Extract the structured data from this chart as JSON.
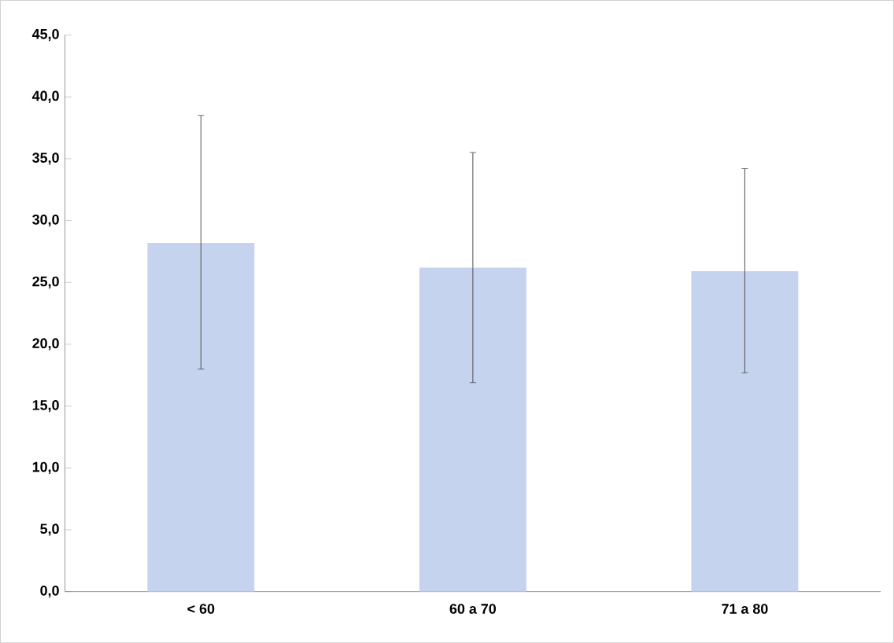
{
  "chart_data": {
    "type": "bar",
    "categories": [
      "< 60",
      "60 a 70",
      "71 a 80"
    ],
    "values": [
      28.2,
      26.2,
      25.9
    ],
    "color": "#c5d3ee",
    "errors": [
      [
        18.0,
        38.5
      ],
      [
        16.9,
        35.5
      ],
      [
        17.7,
        34.2
      ]
    ],
    "ylim": [
      0,
      45
    ],
    "yticks": [
      {
        "value": 0,
        "label": "0,0"
      },
      {
        "value": 5,
        "label": "5,0"
      },
      {
        "value": 10,
        "label": "10,0"
      },
      {
        "value": 15,
        "label": "15,0"
      },
      {
        "value": 20,
        "label": "20,0"
      },
      {
        "value": 25,
        "label": "25,0"
      },
      {
        "value": 30,
        "label": "30,0"
      },
      {
        "value": 35,
        "label": "35,0"
      },
      {
        "value": 40,
        "label": "40,0"
      },
      {
        "value": 45,
        "label": "45,0"
      }
    ],
    "grid": false
  }
}
